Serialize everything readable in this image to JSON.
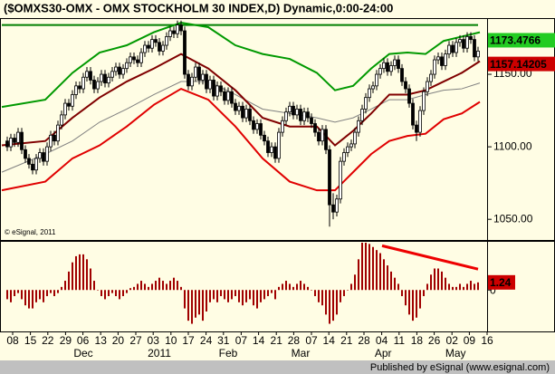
{
  "header": {
    "copyright": "© eSignal, 2011"
  },
  "footer": "Published by eSignal (www.esignal.com)",
  "chart_data": [
    {
      "type": "candlestick",
      "title": "($OMXS30-OMX - OMX STOCKHOLM 30 INDEX,D) Dynamic,0:00-24:00",
      "xlim": [
        -1.5,
        132.5
      ],
      "ylim": [
        1037,
        1187.5
      ],
      "yticks": [
        {
          "value": 1050,
          "label": "1050.00"
        },
        {
          "value": 1100,
          "label": "1100.00"
        },
        {
          "value": 1150,
          "label": "1150.00"
        }
      ],
      "open": [
        1104,
        1100,
        1106,
        1103,
        1110,
        1098,
        1092,
        1088,
        1084,
        1092,
        1096,
        1090,
        1100,
        1108,
        1104,
        1115,
        1122,
        1130,
        1128,
        1136,
        1142,
        1140,
        1148,
        1152,
        1146,
        1140,
        1145,
        1150,
        1144,
        1148,
        1152,
        1155,
        1150,
        1154,
        1158,
        1162,
        1160,
        1158,
        1165,
        1170,
        1168,
        1174,
        1172,
        1166,
        1170,
        1176,
        1180,
        1178,
        1184,
        1180,
        1150,
        1142,
        1148,
        1155,
        1146,
        1150,
        1140,
        1146,
        1135,
        1142,
        1138,
        1132,
        1138,
        1130,
        1125,
        1128,
        1120,
        1126,
        1118,
        1112,
        1116,
        1108,
        1104,
        1096,
        1100,
        1092,
        1110,
        1118,
        1124,
        1128,
        1122,
        1126,
        1118,
        1124,
        1120,
        1116,
        1110,
        1104,
        1112,
        1098,
        1060,
        1055,
        1064,
        1090,
        1096,
        1100,
        1102,
        1110,
        1118,
        1126,
        1134,
        1140,
        1142,
        1150,
        1154,
        1158,
        1152,
        1156,
        1160,
        1154,
        1145,
        1140,
        1130,
        1115,
        1110,
        1125,
        1138,
        1145,
        1150,
        1160,
        1162,
        1156,
        1164,
        1170,
        1165,
        1172,
        1174,
        1168,
        1176,
        1174,
        1162
      ],
      "high": [
        1107,
        1109,
        1109,
        1113,
        1113,
        1101,
        1095,
        1091,
        1095,
        1099,
        1099,
        1103,
        1111,
        1111,
        1118,
        1125,
        1133,
        1133,
        1139,
        1145,
        1145,
        1151,
        1155,
        1155,
        1149,
        1148,
        1153,
        1153,
        1151,
        1155,
        1158,
        1158,
        1157,
        1161,
        1165,
        1165,
        1163,
        1168,
        1173,
        1173,
        1177,
        1177,
        1175,
        1173,
        1179,
        1183,
        1183,
        1187,
        1187,
        1183,
        1153,
        1151,
        1158,
        1158,
        1153,
        1153,
        1149,
        1149,
        1145,
        1145,
        1141,
        1141,
        1141,
        1133,
        1131,
        1131,
        1129,
        1129,
        1121,
        1119,
        1119,
        1111,
        1107,
        1103,
        1103,
        1113,
        1121,
        1127,
        1131,
        1131,
        1129,
        1129,
        1127,
        1127,
        1123,
        1119,
        1113,
        1115,
        1115,
        1101,
        1068,
        1067,
        1093,
        1099,
        1103,
        1105,
        1113,
        1121,
        1129,
        1137,
        1143,
        1145,
        1153,
        1157,
        1161,
        1161,
        1159,
        1163,
        1163,
        1157,
        1148,
        1143,
        1133,
        1118,
        1128,
        1141,
        1148,
        1153,
        1163,
        1165,
        1165,
        1167,
        1173,
        1173,
        1175,
        1177,
        1177,
        1179,
        1179,
        1177,
        1169
      ],
      "low": [
        1097,
        1097,
        1100,
        1100,
        1095,
        1089,
        1085,
        1081,
        1081,
        1089,
        1087,
        1087,
        1097,
        1101,
        1101,
        1112,
        1119,
        1125,
        1125,
        1133,
        1137,
        1137,
        1145,
        1143,
        1137,
        1137,
        1142,
        1141,
        1141,
        1145,
        1149,
        1147,
        1147,
        1151,
        1155,
        1157,
        1155,
        1155,
        1162,
        1165,
        1165,
        1169,
        1163,
        1163,
        1167,
        1173,
        1175,
        1175,
        1177,
        1147,
        1139,
        1139,
        1145,
        1143,
        1143,
        1137,
        1137,
        1132,
        1132,
        1135,
        1129,
        1129,
        1127,
        1122,
        1122,
        1117,
        1117,
        1115,
        1109,
        1109,
        1105,
        1101,
        1093,
        1093,
        1089,
        1089,
        1107,
        1115,
        1121,
        1119,
        1119,
        1115,
        1115,
        1117,
        1113,
        1107,
        1101,
        1101,
        1095,
        1045,
        1050,
        1052,
        1061,
        1087,
        1093,
        1097,
        1099,
        1107,
        1115,
        1123,
        1131,
        1137,
        1139,
        1147,
        1151,
        1149,
        1149,
        1153,
        1151,
        1142,
        1137,
        1127,
        1112,
        1104,
        1107,
        1122,
        1135,
        1142,
        1147,
        1157,
        1153,
        1153,
        1161,
        1162,
        1162,
        1169,
        1165,
        1165,
        1171,
        1159,
        1159
      ],
      "close": [
        1100,
        1106,
        1103,
        1110,
        1098,
        1092,
        1088,
        1084,
        1092,
        1096,
        1090,
        1100,
        1108,
        1104,
        1115,
        1122,
        1130,
        1128,
        1136,
        1142,
        1140,
        1148,
        1152,
        1146,
        1140,
        1145,
        1150,
        1144,
        1148,
        1152,
        1155,
        1150,
        1154,
        1158,
        1162,
        1160,
        1158,
        1165,
        1170,
        1168,
        1174,
        1172,
        1166,
        1170,
        1176,
        1180,
        1178,
        1184,
        1180,
        1150,
        1142,
        1148,
        1155,
        1146,
        1150,
        1140,
        1146,
        1135,
        1142,
        1138,
        1132,
        1138,
        1130,
        1125,
        1128,
        1120,
        1126,
        1118,
        1112,
        1116,
        1108,
        1104,
        1096,
        1100,
        1092,
        1110,
        1118,
        1124,
        1128,
        1122,
        1126,
        1118,
        1124,
        1120,
        1116,
        1110,
        1104,
        1112,
        1098,
        1060,
        1055,
        1064,
        1090,
        1096,
        1100,
        1102,
        1110,
        1118,
        1126,
        1134,
        1140,
        1142,
        1150,
        1154,
        1158,
        1152,
        1156,
        1160,
        1154,
        1145,
        1140,
        1130,
        1115,
        1110,
        1125,
        1138,
        1145,
        1150,
        1160,
        1162,
        1156,
        1164,
        1170,
        1165,
        1172,
        1174,
        1168,
        1176,
        1174,
        1162,
        1166
      ],
      "bands": {
        "x": [
          -1.5,
          10.5,
          18,
          25.5,
          33,
          40.5,
          48,
          55.5,
          63,
          70.5,
          78,
          85.5,
          90.5,
          95.5,
          100.5,
          105.5,
          110.5,
          115.5,
          120.5,
          125.5,
          130.5
        ],
        "upper": [
          1127.5,
          1132.5,
          1151,
          1165,
          1170,
          1179,
          1185.6,
          1182.5,
          1170,
          1164,
          1160.6,
          1151,
          1139,
          1142,
          1154,
          1164,
          1165,
          1164,
          1173,
          1176,
          1179
        ],
        "middle": [
          1101,
          1104,
          1120,
          1134,
          1145,
          1154,
          1164,
          1154,
          1139,
          1120,
          1114,
          1114,
          1101,
          1111,
          1123,
          1136,
          1136,
          1139,
          1145,
          1151,
          1159
        ],
        "lower": [
          1070,
          1076,
          1092,
          1101,
          1114,
          1129,
          1140,
          1132.5,
          1114,
          1092,
          1076,
          1070,
          1070,
          1082.5,
          1095,
          1104,
          1107.5,
          1109,
          1119,
          1123,
          1131
        ],
        "average": [
          1082.5,
          1095,
          1104,
          1117,
          1126,
          1136,
          1145,
          1145,
          1136,
          1126,
          1123,
          1120,
          1117,
          1120,
          1126,
          1132.5,
          1132.5,
          1136,
          1139,
          1140,
          1144
        ],
        "colors": {
          "upper": "#009900",
          "middle": "#800000",
          "lower": "#e00000",
          "average": "#808080"
        },
        "upper_last": 1173.4766,
        "middle_last": 1157.14205
      },
      "resistance": {
        "x": [
          -1.5,
          130
        ],
        "y": [
          1184,
          1184
        ],
        "color": "#008000"
      },
      "up_color": "#ffffff",
      "down_color": "#000000"
    },
    {
      "type": "bar",
      "xlim": [
        -1.5,
        132.5
      ],
      "ylim": [
        -6.6,
        7.7
      ],
      "yticks": [
        0
      ],
      "color": "#a00000",
      "values": [
        -1.5,
        -2,
        -1,
        -0.5,
        -1.5,
        -2.5,
        -3,
        -3,
        -2,
        -1.5,
        -2,
        -1,
        -0.5,
        -1,
        -0.5,
        0.5,
        1.5,
        3,
        4.5,
        5.5,
        5.8,
        5.8,
        5,
        3.5,
        1.5,
        0,
        -1,
        -1.5,
        -1,
        -0.5,
        -1,
        -1.5,
        -1,
        -0.5,
        0.3,
        0.5,
        1,
        1.5,
        1,
        0.5,
        1,
        1.5,
        2,
        1.5,
        1,
        1.5,
        2,
        1.5,
        0.5,
        -3,
        -5,
        -5.5,
        -4.5,
        -4,
        -5,
        -3.5,
        -2,
        -1.5,
        -2,
        -1,
        -1.5,
        -2,
        -1.5,
        -1,
        -2,
        -2.5,
        -2,
        -1.5,
        -2.5,
        -3,
        -2,
        -1.5,
        -1,
        -0.5,
        -1.5,
        0.5,
        1,
        1.5,
        1,
        0.5,
        1,
        1.5,
        1,
        0.5,
        0,
        -1,
        -2,
        -2.5,
        -4,
        -5.5,
        -5,
        -4,
        -2,
        -1,
        0,
        1,
        2.5,
        5,
        7.7,
        7.7,
        7.5,
        7,
        6.5,
        6,
        5,
        4,
        3,
        2,
        1,
        -1,
        -2.5,
        -4,
        -5,
        -4.5,
        -3,
        -1,
        1,
        2.5,
        3.5,
        3.5,
        3,
        2,
        1,
        0.5,
        0.5,
        1,
        0.5,
        1,
        1.5,
        1,
        1.24
      ],
      "trend": {
        "x": [
          103.5,
          130
        ],
        "y": [
          7.2,
          3.4
        ],
        "color": "#ee0000"
      },
      "xticks": [
        {
          "value": 1.5,
          "label": "08"
        },
        {
          "value": 6.4,
          "label": "15"
        },
        {
          "value": 11.2,
          "label": "22"
        },
        {
          "value": 16.1,
          "label": "29"
        },
        {
          "value": 20.9,
          "label": "06"
        },
        {
          "value": 25.8,
          "label": "13"
        },
        {
          "value": 30.6,
          "label": "20"
        },
        {
          "value": 35.5,
          "label": "27"
        },
        {
          "value": 40.3,
          "label": "03"
        },
        {
          "value": 45.2,
          "label": "10"
        },
        {
          "value": 50,
          "label": "17"
        },
        {
          "value": 54.9,
          "label": "24"
        },
        {
          "value": 59.7,
          "label": "31"
        },
        {
          "value": 64.6,
          "label": "07"
        },
        {
          "value": 69.4,
          "label": "14"
        },
        {
          "value": 74.3,
          "label": "21"
        },
        {
          "value": 79.1,
          "label": "28"
        },
        {
          "value": 84,
          "label": "07"
        },
        {
          "value": 88.8,
          "label": "14"
        },
        {
          "value": 93.7,
          "label": "21"
        },
        {
          "value": 98.5,
          "label": "28"
        },
        {
          "value": 103.4,
          "label": "04"
        },
        {
          "value": 108.2,
          "label": "11"
        },
        {
          "value": 113.1,
          "label": "18"
        },
        {
          "value": 117.9,
          "label": "26"
        },
        {
          "value": 122.8,
          "label": "02"
        },
        {
          "value": 127.6,
          "label": "09"
        },
        {
          "value": 132.5,
          "label": "16"
        }
      ],
      "month_labels": [
        {
          "value": 21,
          "label": "Dec"
        },
        {
          "value": 42,
          "label": "2011"
        },
        {
          "value": 61,
          "label": "Feb"
        },
        {
          "value": 81,
          "label": "Mar"
        },
        {
          "value": 103.8,
          "label": "Apr"
        },
        {
          "value": 123.8,
          "label": "May"
        }
      ]
    }
  ]
}
